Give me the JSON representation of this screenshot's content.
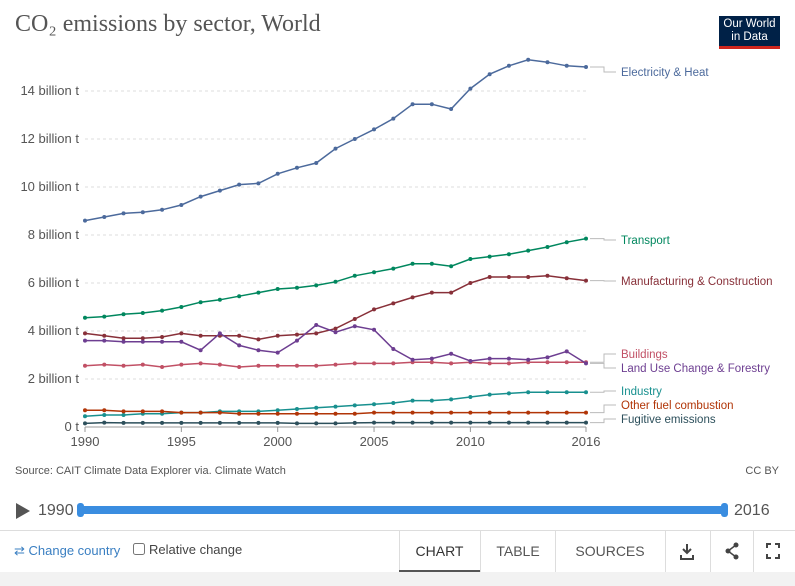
{
  "header": {
    "title": "CO₂ emissions by sector, World",
    "logo_line1": "Our World",
    "logo_line2": "in Data"
  },
  "chart_data": {
    "type": "line",
    "title": "CO₂ emissions by sector, World",
    "x": [
      1990,
      1991,
      1992,
      1993,
      1994,
      1995,
      1996,
      1997,
      1998,
      1999,
      2000,
      2001,
      2002,
      2003,
      2004,
      2005,
      2006,
      2007,
      2008,
      2009,
      2010,
      2011,
      2012,
      2013,
      2014,
      2015,
      2016
    ],
    "xlim": [
      1990,
      2016
    ],
    "ylim": [
      0,
      15500000000
    ],
    "x_ticks": [
      1990,
      1995,
      2000,
      2005,
      2010,
      2016
    ],
    "y_ticks": [
      {
        "value": 0,
        "label": "0 t"
      },
      {
        "value": 2000000000,
        "label": "2 billion t"
      },
      {
        "value": 4000000000,
        "label": "4 billion t"
      },
      {
        "value": 6000000000,
        "label": "6 billion t"
      },
      {
        "value": 8000000000,
        "label": "8 billion t"
      },
      {
        "value": 10000000000,
        "label": "10 billion t"
      },
      {
        "value": 12000000000,
        "label": "12 billion t"
      },
      {
        "value": 14000000000,
        "label": "14 billion t"
      }
    ],
    "grid": "horizontal",
    "legend": "right, end-of-line labels",
    "series": [
      {
        "name": "Electricity & Heat",
        "color": "#4c6a9c",
        "values": [
          8.6,
          8.75,
          8.9,
          8.95,
          9.05,
          9.25,
          9.6,
          9.85,
          10.1,
          10.15,
          10.55,
          10.8,
          11.0,
          11.6,
          12.0,
          12.4,
          12.85,
          13.45,
          13.45,
          13.25,
          14.1,
          14.7,
          15.05,
          15.3,
          15.2,
          15.05,
          15.0
        ]
      },
      {
        "name": "Transport",
        "color": "#00875e",
        "values": [
          4.55,
          4.6,
          4.7,
          4.75,
          4.85,
          5.0,
          5.2,
          5.3,
          5.45,
          5.6,
          5.75,
          5.8,
          5.9,
          6.05,
          6.3,
          6.45,
          6.6,
          6.8,
          6.8,
          6.7,
          7.0,
          7.1,
          7.2,
          7.35,
          7.5,
          7.7,
          7.85
        ]
      },
      {
        "name": "Manufacturing & Construction",
        "color": "#883039",
        "values": [
          3.9,
          3.8,
          3.7,
          3.7,
          3.75,
          3.9,
          3.8,
          3.8,
          3.8,
          3.65,
          3.8,
          3.85,
          3.9,
          4.1,
          4.5,
          4.9,
          5.15,
          5.4,
          5.6,
          5.6,
          6.0,
          6.25,
          6.25,
          6.25,
          6.3,
          6.2,
          6.1
        ]
      },
      {
        "name": "Buildings",
        "color": "#c15065",
        "values": [
          2.55,
          2.6,
          2.55,
          2.6,
          2.5,
          2.6,
          2.65,
          2.6,
          2.5,
          2.55,
          2.55,
          2.55,
          2.55,
          2.6,
          2.65,
          2.65,
          2.65,
          2.7,
          2.7,
          2.65,
          2.7,
          2.65,
          2.65,
          2.7,
          2.7,
          2.7,
          2.7
        ]
      },
      {
        "name": "Land Use Change & Forestry",
        "color": "#6d3e91",
        "values": [
          3.6,
          3.6,
          3.55,
          3.55,
          3.55,
          3.55,
          3.2,
          3.9,
          3.4,
          3.2,
          3.1,
          3.6,
          4.25,
          3.95,
          4.2,
          4.05,
          3.25,
          2.8,
          2.85,
          3.05,
          2.75,
          2.85,
          2.85,
          2.8,
          2.9,
          3.15,
          2.65
        ]
      },
      {
        "name": "Industry",
        "color": "#18908f",
        "values": [
          0.45,
          0.5,
          0.5,
          0.55,
          0.55,
          0.6,
          0.6,
          0.65,
          0.65,
          0.65,
          0.7,
          0.75,
          0.8,
          0.85,
          0.9,
          0.95,
          1.0,
          1.1,
          1.1,
          1.15,
          1.25,
          1.35,
          1.4,
          1.45,
          1.45,
          1.45,
          1.45
        ]
      },
      {
        "name": "Other fuel combustion",
        "color": "#b13507",
        "values": [
          0.7,
          0.7,
          0.65,
          0.65,
          0.65,
          0.6,
          0.6,
          0.6,
          0.55,
          0.55,
          0.55,
          0.55,
          0.55,
          0.55,
          0.55,
          0.6,
          0.6,
          0.6,
          0.6,
          0.6,
          0.6,
          0.6,
          0.6,
          0.6,
          0.6,
          0.6,
          0.6
        ]
      },
      {
        "name": "Fugitive emissions",
        "color": "#2c4f5b",
        "values": [
          0.15,
          0.18,
          0.17,
          0.17,
          0.17,
          0.17,
          0.17,
          0.17,
          0.17,
          0.17,
          0.17,
          0.15,
          0.15,
          0.15,
          0.17,
          0.18,
          0.18,
          0.18,
          0.18,
          0.18,
          0.18,
          0.18,
          0.18,
          0.18,
          0.18,
          0.18,
          0.18
        ]
      }
    ],
    "value_scale_note": "series values are in billion t"
  },
  "source": "Source: CAIT Climate Data Explorer via. Climate Watch",
  "license": "CC BY",
  "timeline": {
    "start": "1990",
    "end": "2016"
  },
  "footer": {
    "change_country": "⇄ Change country",
    "relative_change": "Relative change",
    "tabs": [
      "CHART",
      "TABLE",
      "SOURCES"
    ]
  }
}
